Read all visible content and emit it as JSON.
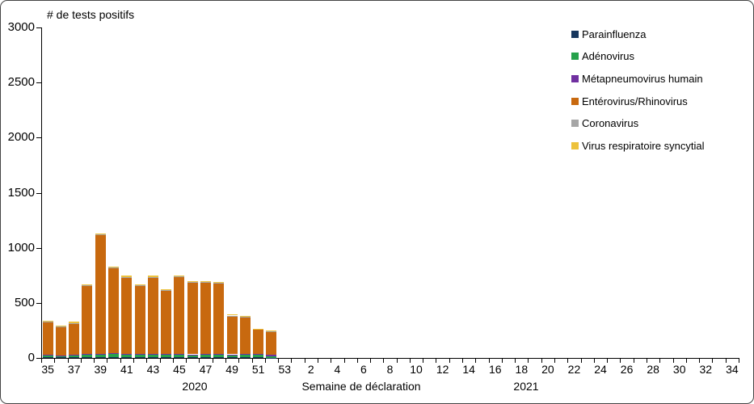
{
  "chart_data": {
    "type": "bar",
    "stacked": true,
    "title": "# de tests positifs",
    "xlabel": "Semaine de déclaration",
    "ylabel": "# de tests positifs",
    "ylim": [
      0,
      3000
    ],
    "y_ticks": [
      "0",
      "500",
      "1000",
      "1500",
      "2000",
      "2500",
      "3000"
    ],
    "x_slot_labels": [
      "35",
      "",
      "37",
      "",
      "39",
      "",
      "41",
      "",
      "43",
      "",
      "45",
      "",
      "47",
      "",
      "49",
      "",
      "51",
      "",
      "53",
      "",
      "2",
      "",
      "4",
      "",
      "6",
      "",
      "8",
      "",
      "10",
      "",
      "12",
      "",
      "14",
      "",
      "16",
      "",
      "18",
      "",
      "20",
      "",
      "22",
      "",
      "24",
      "",
      "26",
      "",
      "28",
      "",
      "30",
      "",
      "32",
      "",
      "34"
    ],
    "year_groups": [
      {
        "label": "2020",
        "start_index": 0,
        "end_index": 18
      },
      {
        "label": "2021",
        "start_index": 19,
        "end_index": 52
      }
    ],
    "bar_weeks": [
      "35",
      "36",
      "37",
      "38",
      "39",
      "40",
      "41",
      "42",
      "43",
      "44",
      "45",
      "46",
      "47",
      "48",
      "49",
      "50",
      "51",
      "52"
    ],
    "bar_totals": [
      340,
      290,
      330,
      670,
      1130,
      830,
      745,
      665,
      745,
      625,
      750,
      700,
      700,
      690,
      395,
      385,
      265,
      250
    ],
    "legend_position": "top-right",
    "grid": "off",
    "series": [
      {
        "id": "parainfluenza",
        "name": "Parainfluenza",
        "color": "#17375E",
        "values": [
          8,
          8,
          8,
          6,
          6,
          8,
          5,
          8,
          5,
          5,
          8,
          5,
          8,
          10,
          5,
          5,
          5,
          3
        ]
      },
      {
        "id": "adenovirus",
        "name": "Adénovirus",
        "color": "#26A14B",
        "values": [
          20,
          15,
          18,
          30,
          25,
          30,
          25,
          25,
          30,
          25,
          25,
          25,
          25,
          25,
          25,
          30,
          30,
          15
        ]
      },
      {
        "id": "metapneumovirus-humain",
        "name": "Métapneumovirus humain",
        "color": "#7030A0",
        "values": [
          2,
          2,
          4,
          2,
          8,
          3,
          5,
          3,
          5,
          5,
          3,
          3,
          3,
          3,
          3,
          3,
          3,
          8
        ]
      },
      {
        "id": "enterovirus-rhinovirus",
        "name": "Entérovirus/Rhinovirus",
        "color": "#C8690F",
        "values": [
          295,
          260,
          280,
          622,
          1075,
          777,
          695,
          619,
          690,
          577,
          702,
          655,
          652,
          640,
          350,
          337,
          222,
          214
        ]
      },
      {
        "id": "coronavirus",
        "name": "Coronavirus",
        "color": "#A6A6A6",
        "values": [
          5,
          3,
          8,
          3,
          6,
          4,
          3,
          2,
          3,
          3,
          2,
          2,
          2,
          2,
          2,
          2,
          2,
          5
        ]
      },
      {
        "id": "virus-respiratoire-syncytial",
        "name": "Virus respiratoire syncytial",
        "color": "#EDC23C",
        "values": [
          10,
          2,
          12,
          7,
          10,
          8,
          12,
          8,
          12,
          10,
          10,
          10,
          10,
          10,
          8,
          8,
          3,
          5
        ]
      }
    ]
  }
}
